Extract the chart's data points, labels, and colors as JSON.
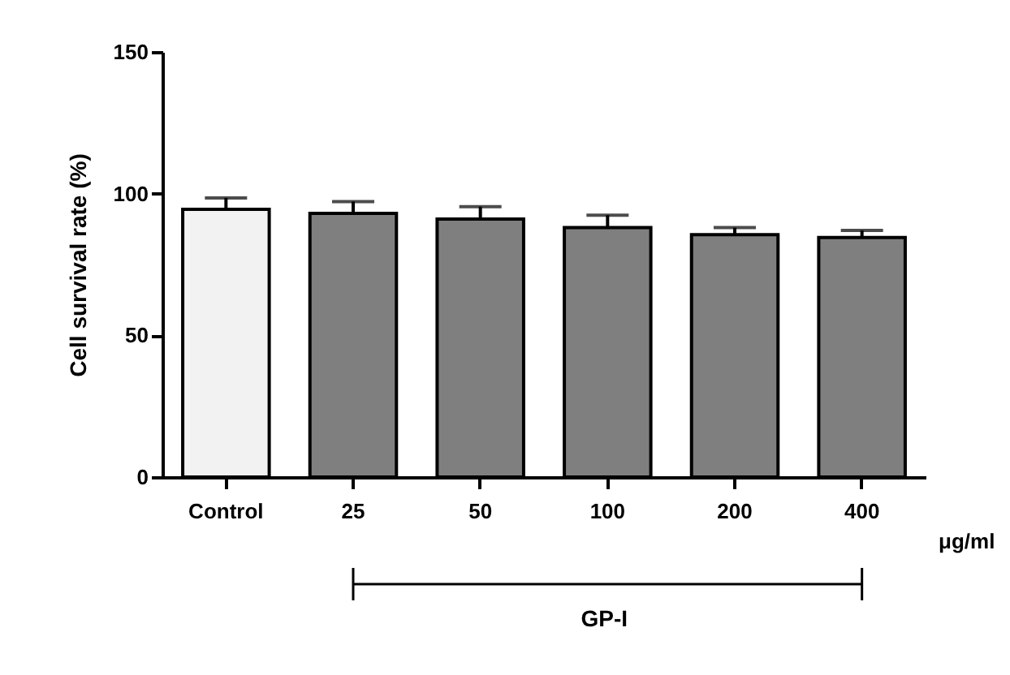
{
  "chart_data": {
    "type": "bar",
    "ylabel": "Cell survival rate (%)",
    "categories": [
      "Control",
      "25",
      "50",
      "100",
      "200",
      "400"
    ],
    "values": [
      94.5,
      93,
      91,
      88,
      85.5,
      84.5
    ],
    "errors": [
      4,
      4.2,
      4.4,
      4.4,
      2.5,
      2.5
    ],
    "colors": [
      "#f2f2f2",
      "#7f7f7f",
      "#7f7f7f",
      "#7f7f7f",
      "#7f7f7f",
      "#7f7f7f"
    ],
    "ylim": [
      0,
      150
    ],
    "yticks": [
      0,
      50,
      100,
      150
    ],
    "grid": false,
    "annotations": [
      "μg/ml",
      "GP-I"
    ]
  }
}
